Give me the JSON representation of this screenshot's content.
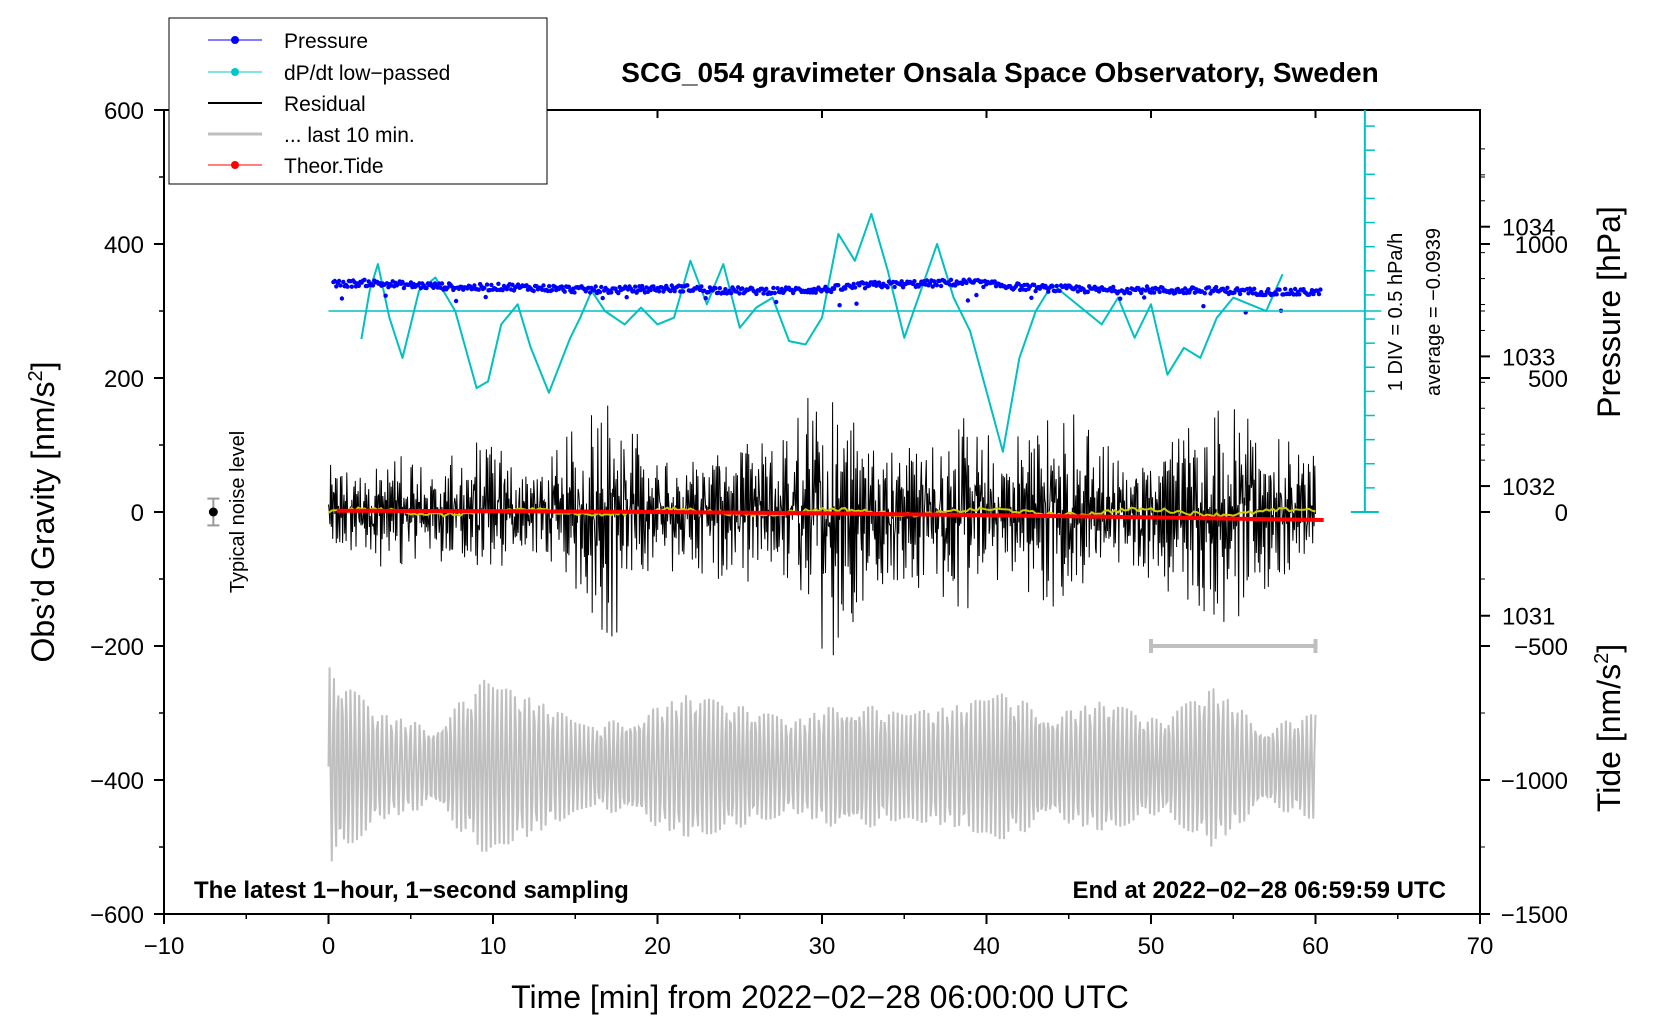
{
  "chart_data": {
    "type": "line",
    "title": "SCG_054 gravimeter Onsala Space Observatory, Sweden",
    "xlabel": "Time [min] from 2022−02−28 06:00:00 UTC",
    "ylabel_left": "Obs’d Gravity [nm/s",
    "ylabel_left_sup": "2",
    "ylabel_left_end": "]",
    "ylabel_right_pressure": "Pressure [hPa]",
    "ylabel_right_tide": "Tide [nm/s",
    "ylabel_right_tide_sup": "2",
    "ylabel_right_tide_end": "]",
    "xlim": [
      -10,
      70
    ],
    "ylim": [
      -600,
      600
    ],
    "x_ticks": [
      -10,
      0,
      10,
      20,
      30,
      40,
      50,
      60,
      70
    ],
    "x_tick_labels": [
      "−10",
      "0",
      "10",
      "20",
      "30",
      "40",
      "50",
      "60",
      "70"
    ],
    "y_ticks": [
      -600,
      -400,
      -200,
      0,
      200,
      400,
      600
    ],
    "y_tick_labels": [
      "−600",
      "−400",
      "−200",
      "0",
      "200",
      "400",
      "600"
    ],
    "pressure_ticks": [
      1031,
      1032,
      1033,
      1034
    ],
    "pressure_tick_labels": [
      "1031",
      "1032",
      "1033",
      "1034"
    ],
    "pressure_ylim": [
      1028.7,
      1034.9
    ],
    "tide_ticks": [
      1000,
      500,
      0,
      -500,
      -1000,
      -1500
    ],
    "tide_tick_labels": [
      "1000",
      "500",
      "0",
      "−500",
      "−1000",
      "−1500"
    ],
    "tide_ylim": [
      -1500,
      1500
    ],
    "legend": [
      {
        "label": "Pressure",
        "color": "#0000ff",
        "marker": true
      },
      {
        "label": "dP/dt low−passed",
        "color": "#00c8c8",
        "marker": true
      },
      {
        "label": "Residual",
        "color": "#000000",
        "marker": false
      },
      {
        "label": "... last 10 min.",
        "color": "#bfbfbf",
        "marker": false
      },
      {
        "label": "Theor.Tide",
        "color": "#ff0000",
        "marker": true
      }
    ],
    "legend_position": "top-left",
    "annotations": {
      "bottom_left": "The latest 1−hour, 1−second sampling",
      "bottom_right": "End at 2022−02−28 06:59:59 UTC",
      "noise_label": "Typical noise level",
      "dpdt_scale": "1 DIV = 0.5 hPa/h",
      "dpdt_average": "average = −0.0939"
    },
    "noise_marker": {
      "x": -7,
      "y": 0,
      "err": 20
    },
    "last10_bar": {
      "x_start": 50,
      "x_end": 60,
      "y": -200
    },
    "dpdt_scale_axis": {
      "x": 63,
      "y_bottom": 0,
      "y_top": 600,
      "baseline_y": 300,
      "div_nm": 36
    },
    "series": [
      {
        "name": "Pressure",
        "color": "#0000ff",
        "x_range": [
          0.3,
          60.3
        ],
        "y_gravity_units": [
          340,
          342,
          339,
          337,
          335,
          336,
          334,
          332,
          331,
          333,
          334,
          331,
          330,
          331,
          332,
          338,
          340,
          341,
          343,
          338,
          334,
          333,
          331,
          332,
          330,
          331,
          329,
          328,
          328
        ]
      },
      {
        "name": "dP/dt low-passed",
        "color": "#00c8c8",
        "x": [
          2,
          2.5,
          3,
          3.7,
          4.5,
          5.5,
          6.5,
          7.7,
          9,
          9.7,
          10.5,
          11.5,
          12.3,
          13.4,
          14.7,
          15.3,
          16.0,
          16.8,
          18,
          19,
          20,
          21,
          22,
          23,
          24,
          25,
          26,
          27,
          28,
          29,
          30,
          31,
          32,
          33,
          34,
          35,
          36,
          37,
          38,
          39,
          40,
          41,
          42,
          43,
          44,
          45,
          46,
          47,
          48,
          49,
          50,
          51,
          52,
          53,
          54,
          55,
          56,
          57,
          58
        ],
        "y_gravity_units": [
          258,
          330,
          370,
          290,
          230,
          330,
          350,
          300,
          185,
          195,
          280,
          310,
          245,
          178,
          260,
          290,
          330,
          300,
          280,
          305,
          280,
          290,
          375,
          310,
          370,
          275,
          305,
          320,
          255,
          250,
          290,
          415,
          375,
          445,
          360,
          260,
          330,
          400,
          320,
          270,
          180,
          90,
          230,
          300,
          340,
          320,
          300,
          280,
          320,
          260,
          310,
          205,
          245,
          230,
          290,
          320,
          310,
          300,
          355
        ]
      },
      {
        "name": "Residual",
        "color": "#000000",
        "x_range": [
          0,
          60
        ],
        "envelope_amplitude_nm": [
          60,
          55,
          80,
          60,
          75,
          110,
          55,
          70,
          120,
          170,
          80,
          75,
          100,
          90,
          100,
          150,
          200,
          90,
          110,
          100,
          130,
          90,
          110,
          140,
          110,
          60,
          90,
          120,
          140,
          130,
          90,
          80
        ]
      },
      {
        "name": "... last 10 min.",
        "color": "#bfbfbf",
        "x_range": [
          0,
          60
        ],
        "center_nm": -380,
        "envelope_amplitude_nm": [
          150,
          80,
          60,
          130,
          100,
          60,
          80,
          110,
          90,
          70,
          100,
          80,
          90,
          110,
          80,
          100,
          70,
          120,
          60,
          80
        ]
      },
      {
        "name": "Theor.Tide",
        "color": "#ff0000",
        "x": [
          0.5,
          10,
          20,
          30,
          40,
          50,
          60.5
        ],
        "y_tide_units": [
          5,
          3,
          0,
          -5,
          -12,
          -20,
          -30
        ]
      }
    ]
  }
}
